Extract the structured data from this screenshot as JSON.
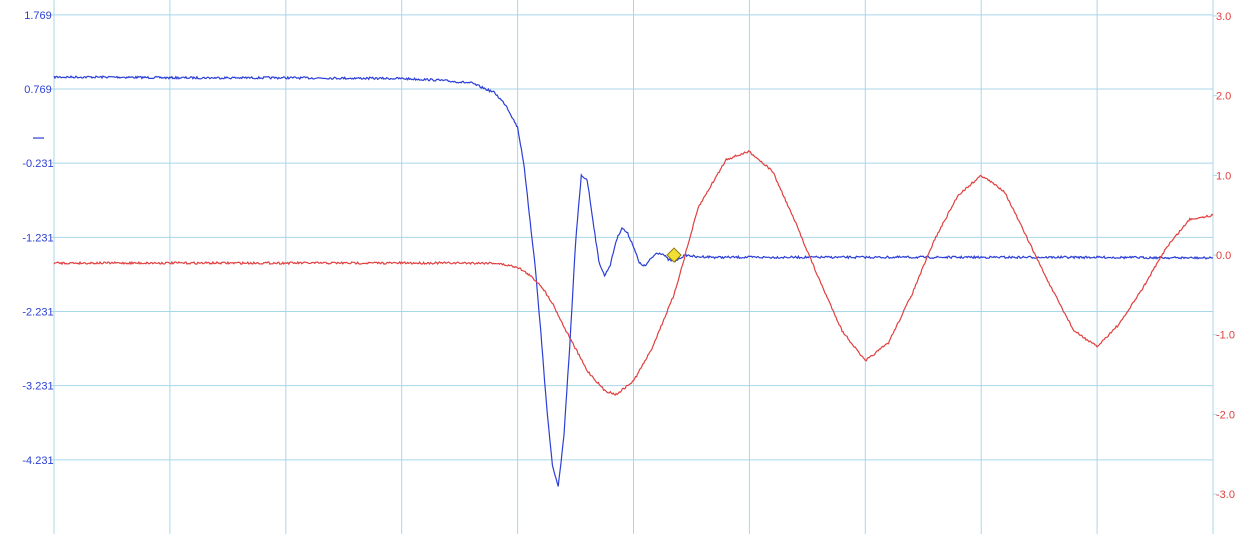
{
  "chart_data": {
    "type": "line",
    "title": "",
    "xlabel": "",
    "grid": true,
    "x_divisions": 10,
    "xlim": [
      0,
      10
    ],
    "y_left": {
      "ticks": [
        "1.769",
        "0.769",
        "-0.231",
        "-1.231",
        "-2.231",
        "-3.231",
        "-4.231"
      ],
      "tick_values": [
        1.769,
        0.769,
        -0.231,
        -1.231,
        -2.231,
        -3.231,
        -4.231
      ],
      "ylim": [
        -5.231,
        1.969
      ],
      "color": "#2b3fd6"
    },
    "y_right": {
      "ticks": [
        "3.0",
        "2.0",
        "1.0",
        "0.0",
        "-1.0",
        "-2.0",
        "-3.0"
      ],
      "tick_values": [
        3.0,
        2.0,
        1.0,
        0.0,
        -1.0,
        -2.0,
        -3.0
      ],
      "ylim": [
        -3.5,
        3.2
      ],
      "color": "#e0403f"
    },
    "series": [
      {
        "axis": "left",
        "color": "#2b3fd6",
        "x": [
          0.0,
          0.5,
          1.0,
          2.0,
          3.0,
          3.3,
          3.6,
          3.8,
          3.9,
          4.0,
          4.05,
          4.1,
          4.15,
          4.2,
          4.25,
          4.3,
          4.35,
          4.4,
          4.45,
          4.5,
          4.55,
          4.6,
          4.65,
          4.7,
          4.75,
          4.8,
          4.85,
          4.9,
          4.95,
          5.0,
          5.05,
          5.1,
          5.15,
          5.2,
          5.25,
          5.3,
          5.35,
          5.4,
          5.45,
          5.5,
          5.55,
          5.6,
          5.7,
          5.8,
          6.0,
          7.0,
          8.0,
          9.0,
          10.0
        ],
        "y": [
          0.93,
          0.93,
          0.92,
          0.92,
          0.91,
          0.89,
          0.85,
          0.72,
          0.55,
          0.25,
          -0.2,
          -0.9,
          -1.6,
          -2.5,
          -3.5,
          -4.3,
          -4.6,
          -3.9,
          -2.7,
          -1.3,
          -0.4,
          -0.45,
          -1.0,
          -1.55,
          -1.75,
          -1.6,
          -1.28,
          -1.1,
          -1.18,
          -1.35,
          -1.58,
          -1.62,
          -1.52,
          -1.44,
          -1.45,
          -1.53,
          -1.56,
          -1.51,
          -1.47,
          -1.48,
          -1.5,
          -1.49,
          -1.5,
          -1.5,
          -1.5,
          -1.5,
          -1.5,
          -1.5,
          -1.51
        ]
      },
      {
        "axis": "right",
        "color": "#e0403f",
        "x": [
          0.0,
          1.0,
          2.0,
          3.0,
          3.8,
          4.0,
          4.1,
          4.2,
          4.3,
          4.4,
          4.6,
          4.75,
          4.85,
          5.0,
          5.15,
          5.35,
          5.56,
          5.8,
          6.0,
          6.2,
          6.4,
          6.6,
          6.8,
          7.0,
          7.2,
          7.4,
          7.6,
          7.8,
          8.0,
          8.2,
          8.4,
          8.6,
          8.8,
          9.0,
          9.2,
          9.4,
          9.6,
          9.8,
          10.0
        ],
        "y": [
          -0.1,
          -0.1,
          -0.1,
          -0.1,
          -0.1,
          -0.15,
          -0.25,
          -0.38,
          -0.6,
          -0.9,
          -1.45,
          -1.7,
          -1.75,
          -1.58,
          -1.2,
          -0.5,
          0.6,
          1.2,
          1.3,
          1.05,
          0.4,
          -0.3,
          -0.95,
          -1.33,
          -1.1,
          -0.5,
          0.2,
          0.75,
          1.0,
          0.8,
          0.2,
          -0.4,
          -0.95,
          -1.15,
          -0.85,
          -0.4,
          0.1,
          0.45,
          0.5
        ]
      }
    ],
    "cursor_marker": {
      "x": 5.35,
      "y_right": 0.0,
      "color": "#f2df33"
    }
  }
}
